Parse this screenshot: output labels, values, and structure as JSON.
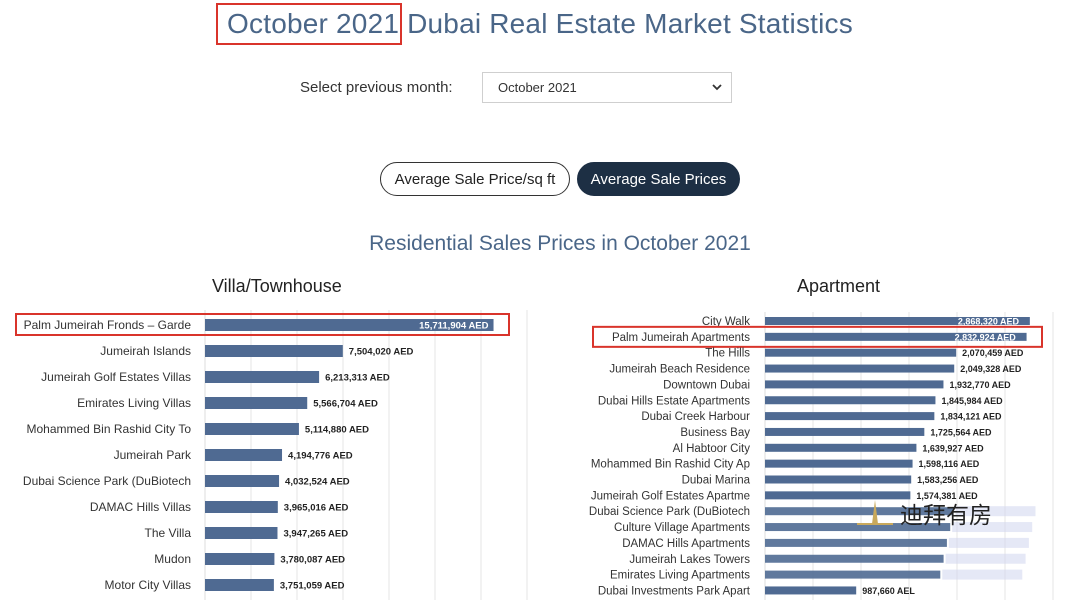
{
  "header": {
    "title_month": "October 2021",
    "title_rest": " Dubai Real Estate Market Statistics"
  },
  "month_picker": {
    "label": "Select previous month:",
    "selected": "October 2021"
  },
  "toggles": {
    "per_sqft": "Average Sale Price/sq ft",
    "sale_prices": "Average Sale Prices"
  },
  "section_title": "Residential Sales Prices in October 2021",
  "watermark": "迪拜有房",
  "colors": {
    "bar": "#4f6a92",
    "highlight": "#d9342b",
    "title": "#4a6688",
    "button_dark": "#1d2f44"
  },
  "chart_data": [
    {
      "type": "bar",
      "orientation": "horizontal",
      "title": "Villa/Townhouse",
      "categories": [
        "Palm Jumeirah Fronds – Garde",
        "Jumeirah Islands",
        "Jumeirah Golf Estates Villas",
        "Emirates Living Villas",
        "Mohammed Bin Rashid City To",
        "Jumeirah Park",
        "Dubai Science Park (DuBiotech",
        "DAMAC Hills Villas",
        "The Villa",
        "Mudon",
        "Motor City Villas"
      ],
      "values": [
        15711904,
        7504020,
        6213313,
        5566704,
        5114880,
        4194776,
        4032524,
        3965016,
        3947265,
        3780087,
        3751059
      ],
      "labels": [
        "15,711,904 AED",
        "7,504,020 AED",
        "6,213,313 AED",
        "5,566,704 AED",
        "5,114,880 AED",
        "4,194,776 AED",
        "4,032,524 AED",
        "3,965,016 AED",
        "3,947,265 AED",
        "3,780,087 AED",
        "3,751,059 AED"
      ],
      "highlighted": "Palm Jumeirah Fronds – Garde",
      "unit": "AED",
      "xlim": [
        0,
        16500000
      ],
      "grid": true
    },
    {
      "type": "bar",
      "orientation": "horizontal",
      "title": "Apartment",
      "categories": [
        "City Walk",
        "Palm Jumeirah Apartments",
        "The Hills",
        "Jumeirah Beach Residence",
        "Downtown Dubai",
        "Dubai Hills Estate Apartments",
        "Dubai Creek Harbour",
        "Business Bay",
        "Al Habtoor City",
        "Mohammed Bin Rashid City Ap",
        "Dubai Marina",
        "Jumeirah Golf Estates Apartme",
        "Dubai Science Park (DuBiotech",
        "Culture Village Apartments",
        "DAMAC Hills Apartments",
        "Jumeirah Lakes Towers",
        "Emirates Living Apartments",
        "Dubai Investments Park Apart"
      ],
      "values": [
        2868320,
        2832924,
        2070459,
        2049328,
        1932770,
        1845984,
        1834121,
        1725564,
        1639927,
        1598116,
        1583256,
        1574381,
        null,
        null,
        null,
        null,
        null,
        987660
      ],
      "labels": [
        "2,868,320 AED",
        "2,832,924 AED",
        "2,070,459 AED",
        "2,049,328 AED",
        "1,932,770 AED",
        "1,845,984 AED",
        "1,834,121 AED",
        "1,725,564 AED",
        "1,639,927 AED",
        "1,598,116 AED",
        "1,583,256 AED",
        "1,574,381 AED",
        "",
        "",
        "",
        "",
        "",
        "987,660 AEL"
      ],
      "highlighted": "Palm Jumeirah Apartments",
      "unit": "AED",
      "xlim": [
        0,
        3000000
      ],
      "grid": true
    }
  ]
}
